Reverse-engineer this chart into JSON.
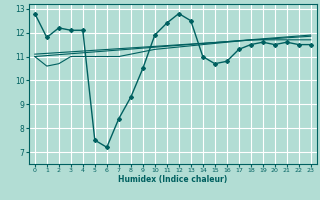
{
  "xlabel": "Humidex (Indice chaleur)",
  "ylabel": "",
  "bg_color": "#b2ddd4",
  "grid_color": "#ffffff",
  "line_color": "#006060",
  "xlim": [
    -0.5,
    23.5
  ],
  "ylim": [
    6.5,
    13.2
  ],
  "yticks": [
    7,
    8,
    9,
    10,
    11,
    12,
    13
  ],
  "xticks": [
    0,
    1,
    2,
    3,
    4,
    5,
    6,
    7,
    8,
    9,
    10,
    11,
    12,
    13,
    14,
    15,
    16,
    17,
    18,
    19,
    20,
    21,
    22,
    23
  ],
  "main_x": [
    0,
    1,
    2,
    3,
    4,
    5,
    6,
    7,
    8,
    9,
    10,
    11,
    12,
    13,
    14,
    15,
    16,
    17,
    18,
    19,
    20,
    21,
    22,
    23
  ],
  "main_y": [
    12.8,
    11.8,
    12.2,
    12.1,
    12.1,
    7.5,
    7.2,
    8.4,
    9.3,
    10.5,
    11.9,
    12.4,
    12.8,
    12.5,
    11.0,
    10.7,
    10.8,
    11.3,
    11.5,
    11.6,
    11.5,
    11.6,
    11.5,
    11.5
  ],
  "line2_x": [
    0,
    1,
    2,
    3,
    4,
    5,
    6,
    7,
    8,
    9,
    10,
    11,
    12,
    13,
    14,
    15,
    16,
    17,
    18,
    19,
    20,
    21,
    22,
    23
  ],
  "line2_y": [
    11.0,
    10.6,
    10.7,
    11.0,
    11.0,
    11.0,
    11.0,
    11.0,
    11.1,
    11.2,
    11.3,
    11.35,
    11.4,
    11.45,
    11.5,
    11.55,
    11.6,
    11.65,
    11.7,
    11.7,
    11.7,
    11.7,
    11.7,
    11.7
  ],
  "line3_x": [
    0,
    23
  ],
  "line3_y": [
    11.0,
    11.9
  ],
  "line4_x": [
    0,
    23
  ],
  "line4_y": [
    11.1,
    11.85
  ]
}
